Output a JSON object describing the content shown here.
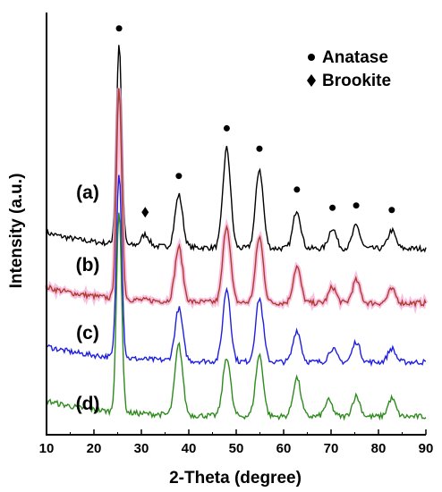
{
  "chart_data": {
    "type": "line",
    "xlabel": "2-Theta (degree)",
    "ylabel": "Intensity (a.u.)",
    "xlim": [
      10,
      90
    ],
    "xticks": [
      10,
      20,
      30,
      40,
      50,
      60,
      70,
      80,
      90
    ],
    "yticks_shown": false,
    "legend": [
      {
        "marker": "circle",
        "label": "Anatase"
      },
      {
        "marker": "diamond",
        "label": "Brookite"
      }
    ],
    "anatase_peaks": [
      25.3,
      37.9,
      48.0,
      54.9,
      62.8,
      70.3,
      75.3,
      82.8
    ],
    "brookite_peaks": [
      30.8
    ],
    "series": [
      {
        "label": "(a)",
        "color": "#000000",
        "baseline": 4.1,
        "peaks": [
          [
            25.3,
            4.4
          ],
          [
            30.8,
            0.25
          ],
          [
            37.9,
            1.15
          ],
          [
            48.0,
            2.2
          ],
          [
            54.9,
            1.75
          ],
          [
            62.8,
            0.85
          ],
          [
            70.3,
            0.45
          ],
          [
            75.3,
            0.5
          ],
          [
            82.8,
            0.4
          ]
        ]
      },
      {
        "label": "(b)",
        "color": "#b03a2e",
        "baseline": 2.9,
        "peaks": [
          [
            25.3,
            4.6
          ],
          [
            37.9,
            1.2
          ],
          [
            48.0,
            1.7
          ],
          [
            54.9,
            1.45
          ],
          [
            62.8,
            0.8
          ],
          [
            70.3,
            0.35
          ],
          [
            75.3,
            0.5
          ],
          [
            82.8,
            0.3
          ]
        ]
      },
      {
        "label": "(c)",
        "color": "#1f1fe0",
        "baseline": 1.6,
        "peaks": [
          [
            25.3,
            4.1
          ],
          [
            37.9,
            1.15
          ],
          [
            48.0,
            1.6
          ],
          [
            54.9,
            1.4
          ],
          [
            62.8,
            0.7
          ],
          [
            70.3,
            0.3
          ],
          [
            75.3,
            0.45
          ],
          [
            82.8,
            0.3
          ]
        ]
      },
      {
        "label": "(d)",
        "color": "#2e8b1e",
        "baseline": 0.4,
        "peaks": [
          [
            25.3,
            4.4
          ],
          [
            37.9,
            1.55
          ],
          [
            48.0,
            1.3
          ],
          [
            54.9,
            1.35
          ],
          [
            62.8,
            0.85
          ],
          [
            69.5,
            0.35
          ],
          [
            75.3,
            0.45
          ],
          [
            82.8,
            0.4
          ]
        ]
      }
    ]
  }
}
